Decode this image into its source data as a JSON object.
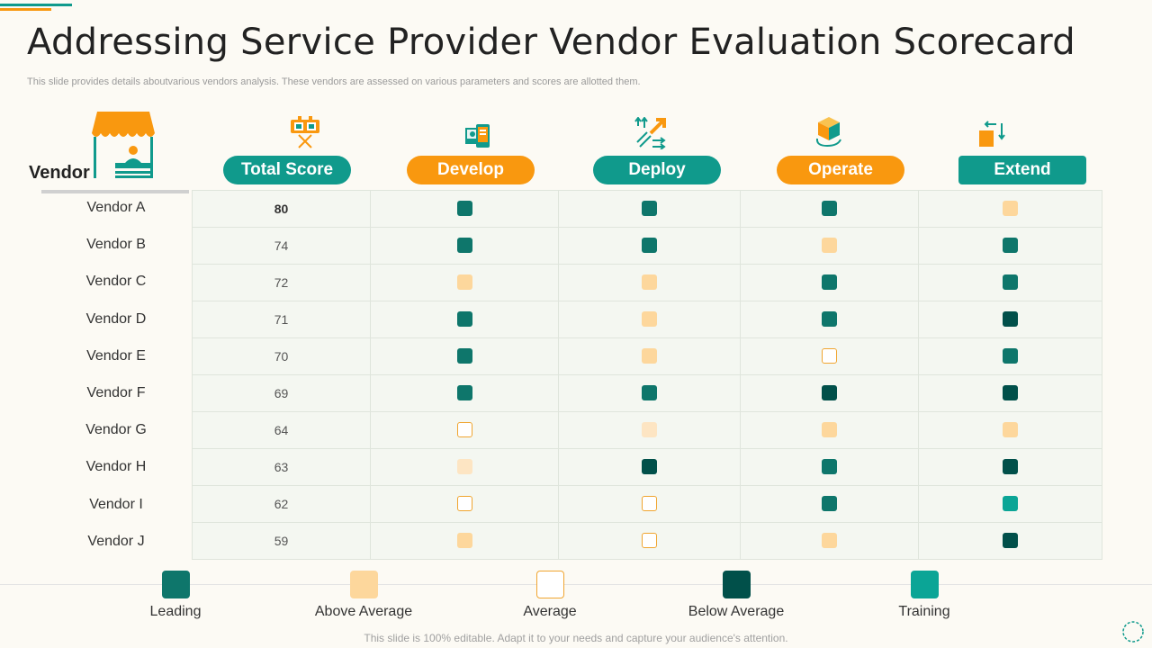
{
  "title": "Addressing Service Provider Vendor Evaluation Scorecard",
  "subtitle": "This slide provides details aboutvarious vendors analysis. These vendors are assessed on various parameters and scores are allotted them.",
  "colors": {
    "leading": "#0e766b",
    "above_average": "#fdd79c",
    "average_border": "#f0a530",
    "below_average": "#01504a",
    "training": "#0ba596",
    "light_peach": "#fde5c3",
    "teal_pill": "#109a8c",
    "orange_pill": "#f9980f"
  },
  "table": {
    "vendor_header": "Vendor",
    "columns": [
      {
        "label": "Total Score",
        "style": "teal",
        "icon": "billboard-icon"
      },
      {
        "label": "Develop",
        "style": "orange",
        "icon": "develop-icon"
      },
      {
        "label": "Deploy",
        "style": "teal",
        "icon": "deploy-arrows-icon"
      },
      {
        "label": "Operate",
        "style": "orange",
        "icon": "operate-cube-icon"
      },
      {
        "label": "Extend",
        "style": "teal-square",
        "icon": "extend-icon"
      }
    ],
    "rows": [
      {
        "vendor": "Vendor A",
        "score": "80",
        "ratings": [
          "leading",
          "leading",
          "leading",
          "above_average"
        ]
      },
      {
        "vendor": "Vendor B",
        "score": "74",
        "ratings": [
          "leading",
          "leading",
          "above_average",
          "leading"
        ]
      },
      {
        "vendor": "Vendor C",
        "score": "72",
        "ratings": [
          "above_average",
          "above_average",
          "leading",
          "leading"
        ]
      },
      {
        "vendor": "Vendor D",
        "score": "71",
        "ratings": [
          "leading",
          "above_average",
          "leading",
          "below_average"
        ]
      },
      {
        "vendor": "Vendor E",
        "score": "70",
        "ratings": [
          "leading",
          "above_average",
          "average",
          "leading"
        ]
      },
      {
        "vendor": "Vendor F",
        "score": "69",
        "ratings": [
          "leading",
          "leading",
          "below_average",
          "below_average"
        ]
      },
      {
        "vendor": "Vendor G",
        "score": "64",
        "ratings": [
          "average",
          "light_peach",
          "above_average",
          "above_average"
        ]
      },
      {
        "vendor": "Vendor H",
        "score": "63",
        "ratings": [
          "light_peach",
          "below_average",
          "leading",
          "below_average"
        ]
      },
      {
        "vendor": "Vendor I",
        "score": "62",
        "ratings": [
          "average",
          "average",
          "leading",
          "training"
        ]
      },
      {
        "vendor": "Vendor J",
        "score": "59",
        "ratings": [
          "above_average",
          "average",
          "above_average",
          "below_average"
        ]
      }
    ]
  },
  "legend": [
    {
      "key": "leading",
      "label": "Leading"
    },
    {
      "key": "above_average",
      "label": "Above Average"
    },
    {
      "key": "average",
      "label": "Average"
    },
    {
      "key": "below_average",
      "label": "Below Average"
    },
    {
      "key": "training",
      "label": "Training"
    }
  ],
  "footer": "This slide is 100% editable. Adapt it to your needs and capture your audience's attention."
}
